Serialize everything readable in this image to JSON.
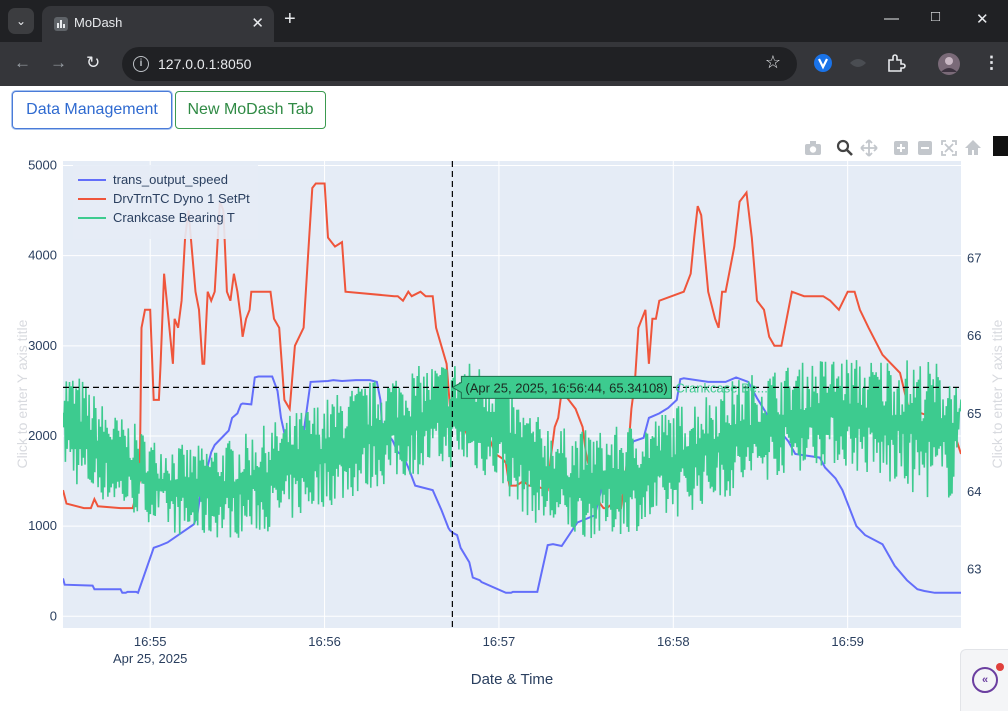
{
  "browser": {
    "tab_title": "MoDash",
    "new_tab_glyph": "+",
    "url": "127.0.0.1:8050",
    "icons": [
      "tab-menu-icon",
      "tab-close-icon",
      "minimize-icon",
      "maximize-icon",
      "close-window-icon",
      "back-icon",
      "forward-icon",
      "reload-icon",
      "site-info-icon",
      "bookmark-star-icon",
      "extension-icon",
      "profile-avatar-icon"
    ]
  },
  "app": {
    "buttons": {
      "data_management": "Data Management",
      "new_tab": "New MoDash Tab"
    },
    "modebar_icons": [
      "camera-icon",
      "zoom-icon",
      "pan-icon",
      "zoom-in-icon",
      "zoom-out-icon",
      "autoscale-icon",
      "reset-home-icon"
    ]
  },
  "hover": {
    "label": "(Apr 25, 2025, 16:56:44, 65.34108)",
    "series": "Crankcase Be...",
    "color": "#3dcb8f"
  },
  "chart_data": {
    "type": "line",
    "xlabel": "Date & Time",
    "ylabel_left": "Click to enter Y axis title",
    "ylabel_right": "Click to enter Y axis title",
    "x_tick_labels": [
      "16:55",
      "16:56",
      "16:57",
      "16:58",
      "16:59"
    ],
    "x_tick_sublabel": "Apr 25, 2025",
    "x_tick_minutes": [
      0,
      1,
      2,
      3,
      4
    ],
    "x_range_minutes": [
      -0.5,
      4.65
    ],
    "ylim_left": [
      -130,
      5050
    ],
    "yticks_left": [
      0,
      1000,
      2000,
      3000,
      4000,
      5000
    ],
    "ylim_right": [
      62.25,
      68.25
    ],
    "yticks_right": [
      63,
      64,
      65,
      66,
      67
    ],
    "hover_x_minutes": 1.733,
    "hover_y_right": 65.34108,
    "legend": {
      "position": "top-left",
      "entries": [
        "trans_output_speed",
        "DrvTrnTC Dyno 1 SetPt",
        "Crankcase Bearing T"
      ]
    },
    "grid": true,
    "series": [
      {
        "name": "trans_output_speed",
        "color": "#636efa",
        "axis": "left",
        "x": [
          -0.5,
          -0.49,
          -0.33,
          -0.32,
          -0.17,
          -0.16,
          -0.14,
          -0.13,
          -0.08,
          -0.07,
          0.02,
          0.05,
          0.1,
          0.25,
          0.27,
          0.3,
          0.32,
          0.35,
          0.37,
          0.45,
          0.47,
          0.5,
          0.52,
          0.53,
          0.58,
          0.6,
          0.62,
          0.7,
          0.73,
          0.75,
          0.78,
          0.8,
          0.85,
          0.87,
          0.92,
          1.02,
          1.05,
          1.1,
          1.18,
          1.26,
          1.3,
          1.32,
          1.33,
          1.39,
          1.42,
          1.45,
          1.48,
          1.52,
          1.62,
          1.67,
          1.71,
          1.72,
          1.74,
          1.76,
          1.78,
          1.83,
          1.85,
          1.89,
          1.9,
          2.04,
          2.07,
          2.08,
          2.22,
          2.28,
          2.31,
          2.36,
          2.45,
          2.55,
          2.6,
          2.72,
          2.77,
          2.83,
          2.86,
          2.92,
          2.97,
          3.02,
          3.04,
          3.06,
          3.2,
          3.3,
          3.36,
          3.43,
          3.48,
          3.55,
          3.66,
          3.7,
          3.84,
          3.87,
          3.93,
          3.97,
          4.0,
          4.05,
          4.1,
          4.2,
          4.27,
          4.34,
          4.4,
          4.44,
          4.5,
          4.6,
          4.65
        ],
        "y": [
          420,
          350,
          340,
          300,
          300,
          260,
          260,
          270,
          270,
          260,
          760,
          780,
          820,
          1020,
          1120,
          1520,
          1590,
          1820,
          1900,
          2060,
          2200,
          2250,
          2350,
          2360,
          2350,
          2650,
          2660,
          2660,
          2500,
          2200,
          1940,
          1650,
          1620,
          1900,
          2600,
          2610,
          2620,
          2610,
          2620,
          2620,
          2600,
          2400,
          2100,
          1950,
          1820,
          1780,
          1650,
          1450,
          1400,
          1180,
          980,
          950,
          920,
          900,
          760,
          600,
          430,
          400,
          380,
          260,
          260,
          270,
          270,
          790,
          800,
          780,
          1040,
          1120,
          1500,
          1520,
          1940,
          1980,
          2200,
          2250,
          2310,
          2400,
          2630,
          2640,
          2600,
          2600,
          2650,
          2600,
          2420,
          2200,
          1940,
          1800,
          1760,
          1650,
          1530,
          1400,
          1250,
          1000,
          900,
          800,
          560,
          400,
          300,
          280,
          260,
          260,
          260
        ]
      },
      {
        "name": "DrvTrnTC Dyno 1 SetPt",
        "color": "#ef553b",
        "axis": "left",
        "x": [
          -0.5,
          -0.48,
          -0.38,
          -0.34,
          -0.32,
          -0.3,
          -0.17,
          -0.15,
          -0.13,
          -0.1,
          -0.06,
          -0.05,
          -0.03,
          0.0,
          0.02,
          0.05,
          0.06,
          0.08,
          0.13,
          0.14,
          0.16,
          0.18,
          0.2,
          0.22,
          0.26,
          0.28,
          0.3,
          0.31,
          0.33,
          0.35,
          0.37,
          0.4,
          0.42,
          0.44,
          0.46,
          0.48,
          0.5,
          0.52,
          0.53,
          0.55,
          0.57,
          0.58,
          0.62,
          0.69,
          0.71,
          0.74,
          0.77,
          0.8,
          0.83,
          0.88,
          0.91,
          0.93,
          0.95,
          1.0,
          1.02,
          1.04,
          1.06,
          1.1,
          1.12,
          1.4,
          1.42,
          1.45,
          1.48,
          1.5,
          1.55,
          1.58,
          1.62,
          1.64,
          1.7,
          1.72,
          1.76,
          1.8,
          1.82,
          1.9,
          1.95,
          1.98,
          2.02,
          2.04,
          2.06,
          2.1,
          2.14,
          2.17,
          2.2,
          2.28,
          2.3,
          2.32,
          2.34,
          2.36,
          2.4,
          2.44,
          2.48,
          2.5,
          2.53,
          2.55,
          2.58,
          2.6,
          2.62,
          2.65,
          2.68,
          2.7,
          2.72,
          2.74,
          2.76,
          2.78,
          2.8,
          2.84,
          2.86,
          2.88,
          2.9,
          2.92,
          3.06,
          3.1,
          3.12,
          3.14,
          3.16,
          3.2,
          3.24,
          3.26,
          3.28,
          3.3,
          3.32,
          3.35,
          3.38,
          3.42,
          3.45,
          3.48,
          3.52,
          3.55,
          3.58,
          3.62,
          3.68,
          3.75,
          3.86,
          3.9,
          3.95,
          4.0,
          4.04,
          4.07,
          4.12,
          4.2,
          4.3,
          4.35,
          4.5,
          4.6,
          4.65
        ],
        "y": [
          1400,
          1250,
          1200,
          1200,
          1300,
          1220,
          1200,
          1200,
          1200,
          1200,
          1500,
          3200,
          3400,
          3400,
          2400,
          2400,
          2800,
          3800,
          2800,
          3300,
          3200,
          3500,
          4200,
          4500,
          3600,
          3400,
          2800,
          2800,
          3600,
          3500,
          3600,
          4600,
          4500,
          3600,
          3500,
          3800,
          3600,
          3300,
          3100,
          3300,
          3400,
          3600,
          3600,
          3600,
          3300,
          3200,
          2400,
          2300,
          3000,
          3200,
          4150,
          4750,
          4800,
          4800,
          4200,
          4150,
          4100,
          4150,
          3600,
          3550,
          3550,
          3500,
          3600,
          3550,
          3600,
          3550,
          3550,
          3200,
          2800,
          2300,
          2200,
          2100,
          2000,
          2000,
          1950,
          1800,
          1750,
          1700,
          1450,
          1450,
          1500,
          1450,
          1450,
          1400,
          1800,
          2100,
          2200,
          2500,
          2400,
          2300,
          2100,
          1800,
          1550,
          1400,
          1250,
          1200,
          1200,
          1250,
          1200,
          1200,
          1500,
          1800,
          2300,
          2600,
          3200,
          3400,
          2800,
          3300,
          3300,
          3500,
          3600,
          3800,
          4200,
          4550,
          4450,
          3600,
          3300,
          3200,
          3600,
          3600,
          3800,
          4100,
          4600,
          4700,
          4200,
          3500,
          3400,
          3100,
          3000,
          3000,
          3600,
          3550,
          3550,
          3500,
          3400,
          3600,
          3600,
          3400,
          3200,
          2900,
          2700,
          2300,
          2200,
          2100,
          1800
        ]
      },
      {
        "name": "Crankcase Bearing T",
        "color": "#3dcb8f",
        "axis": "right",
        "env_x": [
          -0.5,
          -0.4,
          -0.3,
          -0.2,
          -0.1,
          0.0,
          0.1,
          0.2,
          0.3,
          0.4,
          0.5,
          0.6,
          0.7,
          0.8,
          0.9,
          1.0,
          1.1,
          1.2,
          1.3,
          1.4,
          1.5,
          1.6,
          1.7,
          1.8,
          1.9,
          2.0,
          2.1,
          2.2,
          2.3,
          2.4,
          2.5,
          2.6,
          2.7,
          2.8,
          2.9,
          3.0,
          3.1,
          3.2,
          3.3,
          3.4,
          3.5,
          3.6,
          3.7,
          3.8,
          3.9,
          4.0,
          4.1,
          4.2,
          4.3,
          4.4,
          4.5,
          4.6,
          4.65
        ],
        "env_low": [
          64.3,
          64.0,
          63.9,
          63.8,
          63.7,
          63.6,
          63.5,
          63.4,
          63.4,
          63.4,
          63.4,
          63.45,
          63.5,
          63.6,
          63.7,
          63.8,
          63.85,
          63.95,
          64.05,
          64.1,
          64.2,
          64.25,
          64.3,
          64.3,
          64.2,
          64.1,
          63.8,
          63.6,
          63.5,
          63.4,
          63.4,
          63.4,
          63.45,
          63.5,
          63.55,
          63.65,
          63.75,
          63.85,
          63.9,
          64.0,
          64.1,
          64.2,
          64.25,
          64.3,
          64.35,
          64.3,
          64.2,
          64.1,
          64.0,
          63.95,
          63.9,
          63.9,
          65.0
        ],
        "env_high": [
          65.6,
          65.5,
          65.2,
          65.0,
          64.9,
          64.7,
          64.65,
          64.6,
          64.6,
          64.65,
          64.7,
          64.8,
          64.9,
          65.0,
          65.1,
          65.2,
          65.3,
          65.4,
          65.45,
          65.55,
          65.6,
          65.65,
          65.7,
          65.7,
          65.65,
          65.6,
          65.2,
          65.0,
          64.9,
          64.8,
          64.8,
          64.8,
          64.85,
          64.9,
          65.0,
          65.1,
          65.2,
          65.3,
          65.4,
          65.5,
          65.55,
          65.6,
          65.65,
          65.7,
          65.75,
          65.75,
          65.7,
          65.75,
          65.75,
          65.7,
          65.7,
          65.6,
          65.2
        ]
      }
    ]
  }
}
